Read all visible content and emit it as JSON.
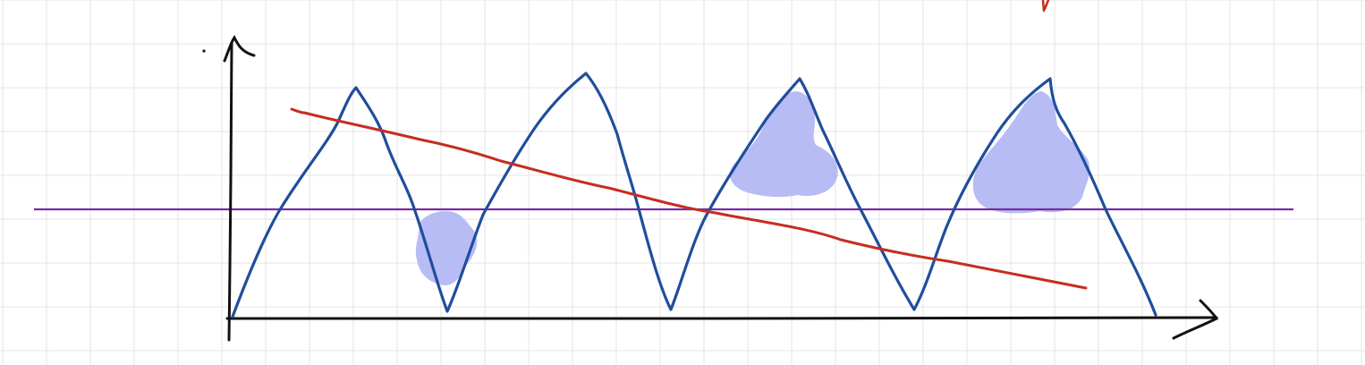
{
  "canvas": {
    "background": "#ffffff",
    "grid_color": "#e4e4e4"
  },
  "colors": {
    "axes": "#111111",
    "wave": "#1f4e9c",
    "trend": "#c62d1f",
    "baseline": "#7a2ca3",
    "highlight": "#b8bcf5"
  },
  "diagram": {
    "axes": {
      "x_label": "",
      "y_label": ""
    },
    "wave_peaks": 4,
    "wave_troughs": 4,
    "highlighted_regions": 4
  }
}
